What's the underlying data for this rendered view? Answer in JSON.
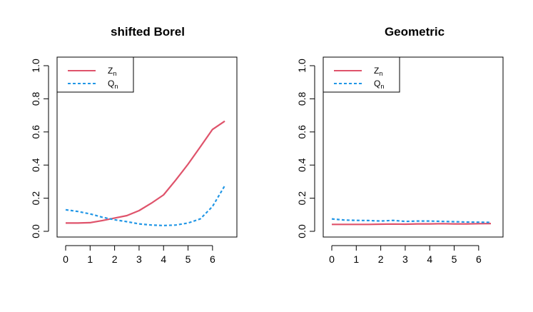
{
  "chart_data": [
    {
      "type": "line",
      "title": "shifted Borel",
      "xlabel": "",
      "ylabel": "",
      "xlim": [
        0,
        6.5
      ],
      "ylim": [
        0,
        1
      ],
      "x_ticks": [
        "0",
        "1",
        "2",
        "3",
        "4",
        "5",
        "6"
      ],
      "y_ticks": [
        "0.0",
        "0.2",
        "0.4",
        "0.6",
        "0.8",
        "1.0"
      ],
      "legend_position": "top-left",
      "series": [
        {
          "name": "Z",
          "subscript": "n",
          "color": "#DF536B",
          "style": "solid",
          "x": [
            0,
            0.5,
            1,
            1.5,
            2,
            2.5,
            3,
            3.5,
            4,
            4.5,
            5,
            5.5,
            6,
            6.5
          ],
          "y": [
            0.05,
            0.05,
            0.052,
            0.065,
            0.08,
            0.095,
            0.125,
            0.17,
            0.22,
            0.31,
            0.405,
            0.51,
            0.615,
            0.665
          ]
        },
        {
          "name": "Q",
          "subscript": "n",
          "color": "#2297E6",
          "style": "dashed",
          "x": [
            0,
            0.5,
            1,
            1.5,
            2,
            2.5,
            3,
            3.5,
            4,
            4.5,
            5,
            5.5,
            6,
            6.5
          ],
          "y": [
            0.13,
            0.12,
            0.105,
            0.085,
            0.07,
            0.058,
            0.045,
            0.038,
            0.035,
            0.038,
            0.05,
            0.075,
            0.15,
            0.275
          ]
        }
      ]
    },
    {
      "type": "line",
      "title": "Geometric",
      "xlabel": "",
      "ylabel": "",
      "xlim": [
        0,
        6.5
      ],
      "ylim": [
        0,
        1
      ],
      "x_ticks": [
        "0",
        "1",
        "2",
        "3",
        "4",
        "5",
        "6"
      ],
      "y_ticks": [
        "0.0",
        "0.2",
        "0.4",
        "0.6",
        "0.8",
        "1.0"
      ],
      "legend_position": "top-left",
      "series": [
        {
          "name": "Z",
          "subscript": "n",
          "color": "#DF536B",
          "style": "solid",
          "x": [
            0,
            0.5,
            1,
            1.5,
            2,
            2.5,
            3,
            3.5,
            4,
            4.5,
            5,
            5.5,
            6,
            6.5
          ],
          "y": [
            0.042,
            0.042,
            0.042,
            0.042,
            0.043,
            0.044,
            0.043,
            0.045,
            0.045,
            0.046,
            0.045,
            0.045,
            0.046,
            0.047
          ]
        },
        {
          "name": "Q",
          "subscript": "n",
          "color": "#2297E6",
          "style": "dashed",
          "x": [
            0,
            0.5,
            1,
            1.5,
            2,
            2.5,
            3,
            3.5,
            4,
            4.5,
            5,
            5.5,
            6,
            6.5
          ],
          "y": [
            0.075,
            0.068,
            0.066,
            0.065,
            0.062,
            0.066,
            0.06,
            0.062,
            0.062,
            0.06,
            0.058,
            0.056,
            0.055,
            0.054
          ]
        }
      ]
    }
  ]
}
